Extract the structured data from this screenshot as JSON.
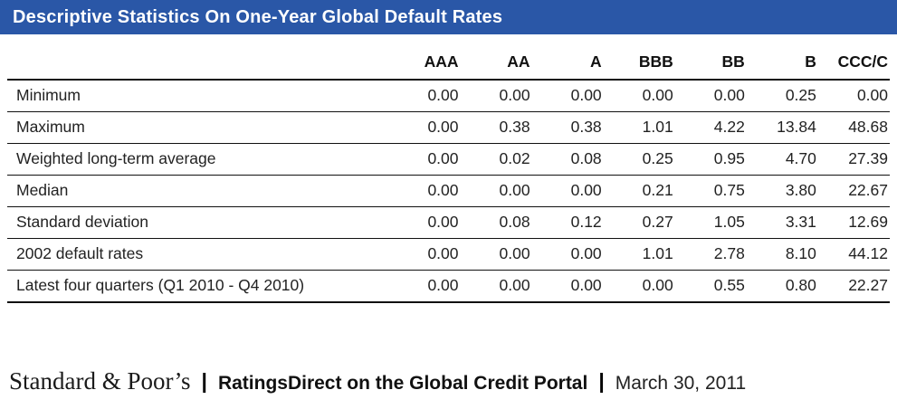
{
  "title_bar": {
    "title": "Descriptive Statistics On One-Year Global Default Rates",
    "background_color": "#2a57a7",
    "text_color": "#ffffff"
  },
  "table": {
    "columns": [
      "AAA",
      "AA",
      "A",
      "BBB",
      "BB",
      "B",
      "CCC/C"
    ],
    "rows": [
      {
        "label": "Minimum",
        "values": [
          "0.00",
          "0.00",
          "0.00",
          "0.00",
          "0.00",
          "0.25",
          "0.00"
        ]
      },
      {
        "label": "Maximum",
        "values": [
          "0.00",
          "0.38",
          "0.38",
          "1.01",
          "4.22",
          "13.84",
          "48.68"
        ]
      },
      {
        "label": "Weighted long-term average",
        "values": [
          "0.00",
          "0.02",
          "0.08",
          "0.25",
          "0.95",
          "4.70",
          "27.39"
        ]
      },
      {
        "label": "Median",
        "values": [
          "0.00",
          "0.00",
          "0.00",
          "0.21",
          "0.75",
          "3.80",
          "22.67"
        ]
      },
      {
        "label": "Standard deviation",
        "values": [
          "0.00",
          "0.08",
          "0.12",
          "0.27",
          "1.05",
          "3.31",
          "12.69"
        ]
      },
      {
        "label": "2002 default rates",
        "values": [
          "0.00",
          "0.00",
          "0.00",
          "1.01",
          "2.78",
          "8.10",
          "44.12"
        ]
      },
      {
        "label": "Latest four quarters (Q1 2010 - Q4 2010)",
        "values": [
          "0.00",
          "0.00",
          "0.00",
          "0.00",
          "0.55",
          "0.80",
          "22.27"
        ]
      }
    ]
  },
  "footer": {
    "brand": "Standard & Poor’s",
    "separator": "|",
    "product": "RatingsDirect on the Global Credit Portal",
    "date": "March 30, 2011"
  }
}
